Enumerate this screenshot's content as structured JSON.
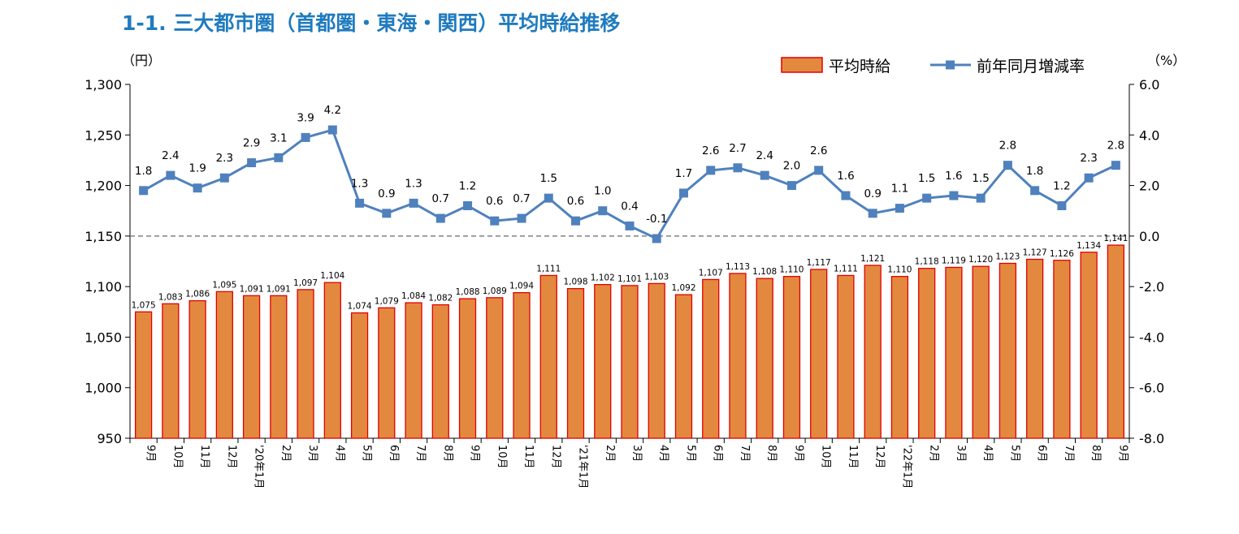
{
  "chart_data": {
    "type": "bar",
    "title": "1-1. 三大都市圏（首都圏・東海・関西）平均時給推移",
    "ylabel_left": "（円）",
    "ylabel_right": "（%）",
    "ylim_left": [
      950,
      1300
    ],
    "yticks_left": [
      "950",
      "1,000",
      "1,050",
      "1,100",
      "1,150",
      "1,200",
      "1,250",
      "1,300"
    ],
    "ylim_right": [
      -8.0,
      6.0
    ],
    "yticks_right": [
      "-8.0",
      "-6.0",
      "-4.0",
      "-2.0",
      "0.0",
      "2.0",
      "4.0",
      "6.0"
    ],
    "categories": [
      "9月",
      "10月",
      "11月",
      "12月",
      "'20年1月",
      "2月",
      "3月",
      "4月",
      "5月",
      "6月",
      "7月",
      "8月",
      "9月",
      "10月",
      "11月",
      "12月",
      "'21年1月",
      "2月",
      "3月",
      "4月",
      "5月",
      "6月",
      "7月",
      "8月",
      "9月",
      "10月",
      "11月",
      "12月",
      "'22年1月",
      "2月",
      "3月",
      "4月",
      "5月",
      "6月",
      "7月",
      "8月",
      "9月"
    ],
    "series": [
      {
        "name": "平均時給",
        "type": "bar",
        "axis": "left",
        "color": "#e3893f",
        "edge_color": "#e00000",
        "values": [
          1075,
          1083,
          1086,
          1095,
          1091,
          1091,
          1097,
          1104,
          1074,
          1079,
          1084,
          1082,
          1088,
          1089,
          1094,
          1111,
          1098,
          1102,
          1101,
          1103,
          1092,
          1107,
          1113,
          1108,
          1110,
          1117,
          1111,
          1121,
          1110,
          1118,
          1119,
          1120,
          1123,
          1127,
          1126,
          1134,
          1141
        ],
        "labels": [
          "1,075",
          "1,083",
          "1,086",
          "1,095",
          "1,091",
          "1,091",
          "1,097",
          "1,104",
          "1,074",
          "1,079",
          "1,084",
          "1,082",
          "1,088",
          "1,089",
          "1,094",
          "1,111",
          "1,098",
          "1,102",
          "1,101",
          "1,103",
          "1,092",
          "1,107",
          "1,113",
          "1,108",
          "1,110",
          "1,117",
          "1,111",
          "1,121",
          "1,110",
          "1,118",
          "1,119",
          "1,120",
          "1,123",
          "1,127",
          "1,126",
          "1,134",
          "1,141"
        ]
      },
      {
        "name": "前年同月増減率",
        "type": "line",
        "axis": "right",
        "color": "#4f81bd",
        "values": [
          1.8,
          2.4,
          1.9,
          2.3,
          2.9,
          3.1,
          3.9,
          4.2,
          1.3,
          0.9,
          1.3,
          0.7,
          1.2,
          0.6,
          0.7,
          1.5,
          0.6,
          1.0,
          0.4,
          -0.1,
          1.7,
          2.6,
          2.7,
          2.4,
          2.0,
          2.6,
          1.6,
          0.9,
          1.1,
          1.5,
          1.6,
          1.5,
          2.8,
          1.8,
          1.2,
          2.3,
          2.8
        ],
        "labels": [
          "1.8",
          "2.4",
          "1.9",
          "2.3",
          "2.9",
          "3.1",
          "3.9",
          "4.2",
          "1.3",
          "0.9",
          "1.3",
          "0.7",
          "1.2",
          "0.6",
          "0.7",
          "1.5",
          "0.6",
          "1.0",
          "0.4",
          "-0.1",
          "1.7",
          "2.6",
          "2.7",
          "2.4",
          "2.0",
          "2.6",
          "1.6",
          "0.9",
          "1.1",
          "1.5",
          "1.6",
          "1.5",
          "2.8",
          "1.8",
          "1.2",
          "2.3",
          "2.8"
        ]
      }
    ],
    "zero_line": "dashed at 0.0 (right axis)",
    "legend_position": "top-right",
    "grid": false
  }
}
